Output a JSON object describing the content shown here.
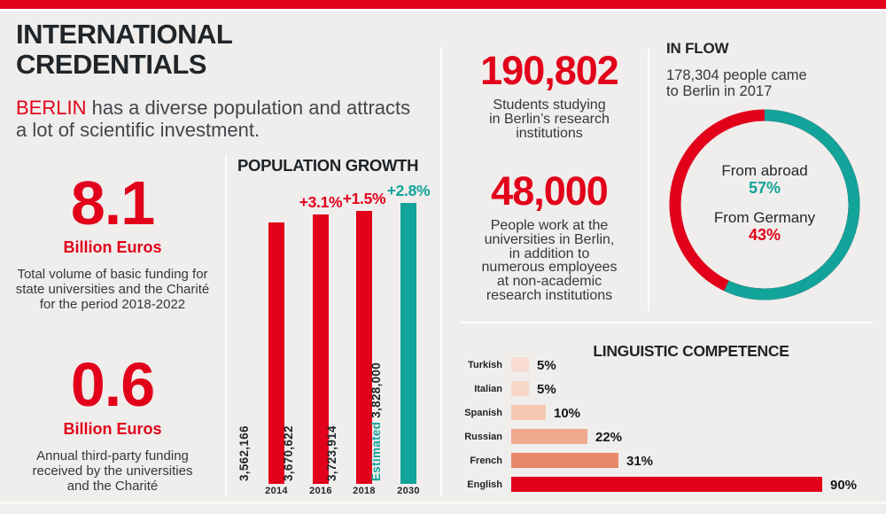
{
  "colors": {
    "red": "#e2001a",
    "teal": "#12a39a",
    "heading": "#20252a",
    "body_text": "#3d4248",
    "background": "#efeeec",
    "divider": "#ffffff"
  },
  "header": {
    "title": "INTERNATIONAL\nCREDENTIALS",
    "subtitle_highlight": "BERLIN",
    "subtitle_rest": " has a diverse population and attracts\na lot of scientific investment."
  },
  "funding": [
    {
      "value": "8.1",
      "unit": "Billion Euros",
      "description": "Total volume of basic funding for\nstate universities and the Charité\nfor the period 2018-2022"
    },
    {
      "value": "0.6",
      "unit": "Billion Euros",
      "description": "Annual third-party funding\nreceived by the universities\nand the Charité"
    }
  ],
  "stats": [
    {
      "value": "190,802",
      "description": "Students studying\nin Berlin’s research\ninstitutions"
    },
    {
      "value": "48,000",
      "description": "People work at the\nuniversities in Berlin,\nin addition to\nnumerous employees\nat non-academic\nresearch institutions"
    }
  ],
  "chart_data": [
    {
      "id": "population_growth",
      "type": "bar",
      "title": "POPULATION GROWTH",
      "categories": [
        "2014",
        "2016",
        "2018",
        "2030"
      ],
      "values": [
        3562166,
        3670622,
        3723914,
        3828000
      ],
      "value_labels": [
        "3,562,166",
        "3,670,622",
        "3,723,914",
        "3,828,000"
      ],
      "growth_labels": [
        "",
        "+3.1%",
        "+1.5%",
        "+2.8%"
      ],
      "estimated_index": 3,
      "estimated_prefix": "Estimated",
      "bar_colors": [
        "#e2001a",
        "#e2001a",
        "#e2001a",
        "#12a39a"
      ],
      "ylim": [
        0,
        3828000
      ],
      "grid": false
    },
    {
      "id": "in_flow",
      "type": "pie",
      "title": "IN FLOW",
      "subtitle": "178,304 people came\nto Berlin in 2017",
      "slices": [
        {
          "label": "From abroad",
          "value": 57,
          "unit": "%",
          "color": "#12a39a"
        },
        {
          "label": "From Germany",
          "value": 43,
          "unit": "%",
          "color": "#e2001a"
        }
      ],
      "legend_position": "center"
    },
    {
      "id": "linguistic_competence",
      "type": "bar",
      "title": "LINGUISTIC COMPETENCE",
      "categories": [
        "Turkish",
        "Italian",
        "Spanish",
        "Russian",
        "French",
        "English"
      ],
      "values": [
        5,
        5,
        10,
        22,
        31,
        90
      ],
      "value_labels": [
        "5%",
        "5%",
        "10%",
        "22%",
        "31%",
        "90%"
      ],
      "bar_colors": [
        "#f8dcd2",
        "#f7d7ca",
        "#f5c8b4",
        "#efa98d",
        "#e8886a",
        "#e2001a"
      ],
      "xlim": [
        0,
        100
      ],
      "grid": false
    }
  ]
}
